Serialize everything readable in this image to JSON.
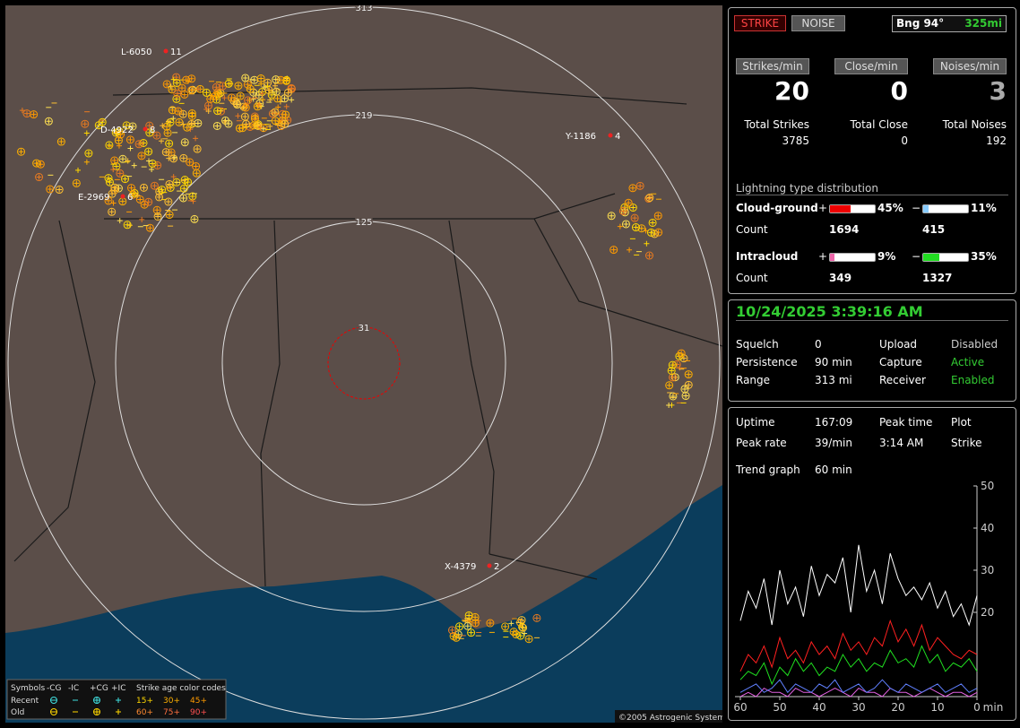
{
  "map": {
    "range_labels": [
      "313",
      "219",
      "125",
      "31"
    ],
    "storms": [
      {
        "id": "L-6050",
        "count": "11"
      },
      {
        "id": "D-4922",
        "count": "8"
      },
      {
        "id": "E-2969",
        "count": "6"
      },
      {
        "id": "Y-1186",
        "count": "4"
      },
      {
        "id": "X-4379",
        "count": "2"
      }
    ],
    "legend": {
      "title": "Symbols",
      "columns": [
        "-CG",
        "-IC",
        "+CG",
        "+IC"
      ],
      "age_title": "Strike age color codes",
      "rows": [
        {
          "label": "Recent",
          "ages": [
            "15+",
            "30+",
            "45+"
          ]
        },
        {
          "label": "Old",
          "ages": [
            "60+",
            "75+",
            "90+"
          ]
        }
      ]
    },
    "copyright": "©2005 Astrogenic Systems"
  },
  "header": {
    "modes": [
      "STRIKE",
      "NOISE"
    ],
    "bearing": "Bng 94°",
    "range": "325mi"
  },
  "rates": [
    {
      "label": "Strikes/min",
      "value": "20",
      "total_label": "Total Strikes",
      "total": "3785"
    },
    {
      "label": "Close/min",
      "value": "0",
      "total_label": "Total Close",
      "total": "0"
    },
    {
      "label": "Noises/min",
      "value": "3",
      "total_label": "Total Noises",
      "total": "192"
    }
  ],
  "distribution": {
    "title": "Lightning type distribution",
    "count_label": "Count",
    "types": [
      {
        "name": "Cloud-ground",
        "positive": {
          "sign": "+",
          "percent": {
            "value": 45,
            "label": "45%"
          },
          "count": "1694"
        },
        "negative": {
          "sign": "−",
          "percent": {
            "value": 11,
            "label": "11%"
          },
          "count": "415"
        }
      },
      {
        "name": "Intracloud",
        "positive": {
          "sign": "+",
          "percent": {
            "value": 9,
            "label": "9%"
          },
          "count": "349"
        },
        "negative": {
          "sign": "−",
          "percent": {
            "value": 35,
            "label": "35%"
          },
          "count": "1327"
        }
      }
    ]
  },
  "status": {
    "timestamp": "10/24/2025 3:39:16 AM",
    "settings": [
      [
        "Squelch",
        "0",
        "Upload",
        "Disabled"
      ],
      [
        "Persistence",
        "90 min",
        "Capture",
        "Active"
      ],
      [
        "Range",
        "313 mi",
        "Receiver",
        "Enabled"
      ]
    ]
  },
  "uptime": {
    "rows": [
      [
        "Uptime",
        "167:09",
        "Peak time",
        "Plot"
      ],
      [
        "Peak rate",
        "39/min",
        "3:14 AM",
        "Strike"
      ]
    ],
    "trend_label": "Trend graph",
    "trend_window": "60 min"
  },
  "chart_data": {
    "type": "line",
    "x_label": "min",
    "x": [
      60,
      58,
      56,
      54,
      52,
      50,
      48,
      46,
      44,
      42,
      40,
      38,
      36,
      34,
      32,
      30,
      28,
      26,
      24,
      22,
      20,
      18,
      16,
      14,
      12,
      10,
      8,
      6,
      4,
      2,
      0
    ],
    "xlim": [
      60,
      0
    ],
    "xticks": [
      60,
      50,
      40,
      30,
      20,
      10,
      0
    ],
    "ylim": [
      0,
      50
    ],
    "yticks": [
      20,
      30,
      40,
      50
    ],
    "series": [
      {
        "color": "#ffffff",
        "values": [
          18,
          25,
          21,
          28,
          17,
          30,
          22,
          26,
          19,
          31,
          24,
          29,
          27,
          33,
          20,
          36,
          25,
          30,
          22,
          34,
          28,
          24,
          26,
          23,
          27,
          21,
          25,
          19,
          22,
          17,
          24
        ]
      },
      {
        "color": "#ff2020",
        "values": [
          6,
          10,
          8,
          12,
          7,
          14,
          9,
          11,
          8,
          13,
          10,
          12,
          9,
          15,
          11,
          13,
          10,
          14,
          12,
          18,
          13,
          16,
          12,
          17,
          11,
          14,
          12,
          10,
          9,
          11,
          10
        ]
      },
      {
        "color": "#20e020",
        "values": [
          4,
          6,
          5,
          8,
          3,
          7,
          5,
          9,
          6,
          8,
          5,
          7,
          6,
          10,
          7,
          9,
          6,
          8,
          7,
          11,
          8,
          9,
          7,
          12,
          8,
          10,
          6,
          8,
          7,
          9,
          6
        ]
      },
      {
        "color": "#e060e0",
        "values": [
          0,
          1,
          0,
          2,
          1,
          1,
          0,
          2,
          1,
          1,
          0,
          1,
          2,
          1,
          0,
          2,
          1,
          1,
          0,
          2,
          1,
          1,
          0,
          1,
          2,
          1,
          0,
          1,
          1,
          0,
          1
        ]
      },
      {
        "color": "#6080ff",
        "values": [
          1,
          2,
          3,
          1,
          2,
          4,
          1,
          3,
          2,
          1,
          3,
          2,
          4,
          1,
          2,
          3,
          1,
          2,
          4,
          2,
          1,
          3,
          2,
          1,
          2,
          3,
          1,
          2,
          3,
          1,
          2
        ]
      }
    ]
  }
}
